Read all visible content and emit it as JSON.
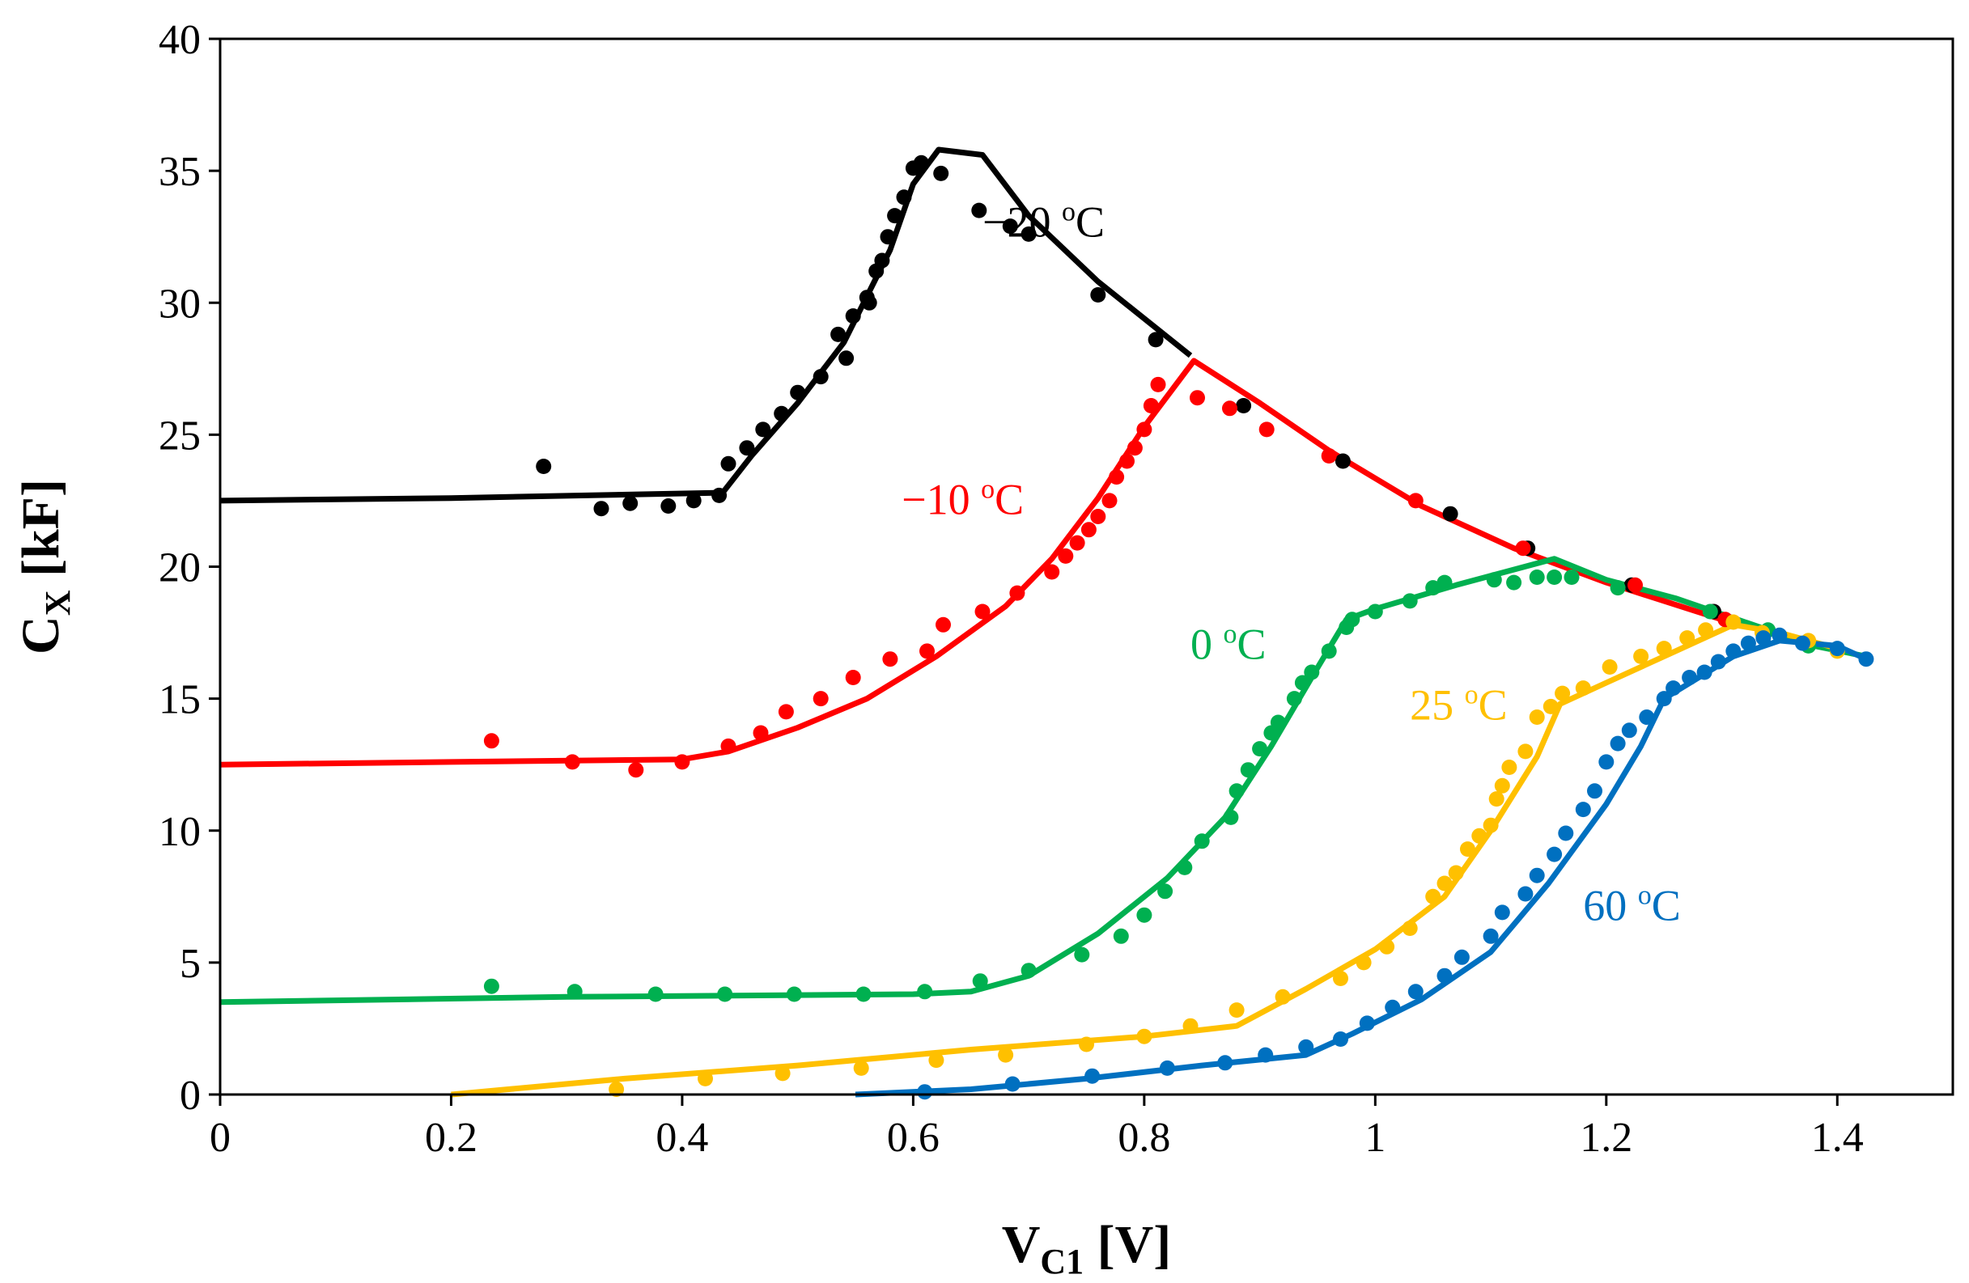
{
  "chart_data": {
    "type": "scatter",
    "title": "",
    "xlabel": {
      "main": "V",
      "sub": "C1",
      "unit": " [V]"
    },
    "ylabel": {
      "main": "C",
      "sub": "X",
      "unit": " [kF]"
    },
    "xlim": [
      0,
      1.5
    ],
    "ylim": [
      0,
      40
    ],
    "xticks": [
      0,
      0.2,
      0.4,
      0.6,
      0.8,
      1,
      1.2,
      1.4
    ],
    "xtick_labels": [
      "0",
      "0.2",
      "0.4",
      "0.6",
      "0.8",
      "1",
      "1.2",
      "1.4"
    ],
    "yticks": [
      0,
      5,
      10,
      15,
      20,
      25,
      30,
      35,
      40
    ],
    "ytick_labels": [
      "0",
      "5",
      "10",
      "15",
      "20",
      "25",
      "30",
      "35",
      "40"
    ],
    "grid": false,
    "series": [
      {
        "name": "-20 °C",
        "label_text": "−20 ",
        "label_unit": "C",
        "label_sup": "o",
        "color": "#000000",
        "label_at": [
          0.66,
          32.5
        ],
        "line": [
          [
            0,
            22.5
          ],
          [
            0.2,
            22.6
          ],
          [
            0.435,
            22.8
          ],
          [
            0.46,
            24.2
          ],
          [
            0.5,
            26.2
          ],
          [
            0.54,
            28.5
          ],
          [
            0.58,
            32.0
          ],
          [
            0.6,
            34.5
          ],
          [
            0.622,
            35.8
          ],
          [
            0.66,
            35.6
          ],
          [
            0.7,
            33.3
          ],
          [
            0.76,
            30.8
          ],
          [
            0.84,
            28.0
          ]
        ],
        "points": [
          [
            0.28,
            23.8
          ],
          [
            0.33,
            22.2
          ],
          [
            0.355,
            22.4
          ],
          [
            0.388,
            22.3
          ],
          [
            0.41,
            22.5
          ],
          [
            0.432,
            22.7
          ],
          [
            0.44,
            23.9
          ],
          [
            0.456,
            24.5
          ],
          [
            0.47,
            25.2
          ],
          [
            0.486,
            25.8
          ],
          [
            0.5,
            26.6
          ],
          [
            0.52,
            27.2
          ],
          [
            0.535,
            28.8
          ],
          [
            0.542,
            27.9
          ],
          [
            0.548,
            29.5
          ],
          [
            0.56,
            30.2
          ],
          [
            0.562,
            30.0
          ],
          [
            0.568,
            31.2
          ],
          [
            0.573,
            31.6
          ],
          [
            0.578,
            32.5
          ],
          [
            0.584,
            33.3
          ],
          [
            0.592,
            34.0
          ],
          [
            0.6,
            35.1
          ],
          [
            0.607,
            35.3
          ],
          [
            0.624,
            34.9
          ],
          [
            0.657,
            33.5
          ],
          [
            0.684,
            32.9
          ],
          [
            0.7,
            32.6
          ],
          [
            0.76,
            30.3
          ],
          [
            0.81,
            28.6
          ],
          [
            0.886,
            26.1
          ],
          [
            0.972,
            24.0
          ],
          [
            1.065,
            22.0
          ],
          [
            1.132,
            20.7
          ],
          [
            1.222,
            19.3
          ],
          [
            1.293,
            18.3
          ]
        ]
      },
      {
        "name": "-10 °C",
        "label_text": "−10 ",
        "label_unit": "C",
        "label_sup": "o",
        "color": "#ff0000",
        "label_at": [
          0.59,
          22.0
        ],
        "line": [
          [
            0,
            12.5
          ],
          [
            0.2,
            12.6
          ],
          [
            0.4,
            12.7
          ],
          [
            0.44,
            13.0
          ],
          [
            0.5,
            13.9
          ],
          [
            0.56,
            15.0
          ],
          [
            0.62,
            16.6
          ],
          [
            0.68,
            18.5
          ],
          [
            0.72,
            20.3
          ],
          [
            0.76,
            22.6
          ],
          [
            0.8,
            25.3
          ],
          [
            0.843,
            27.8
          ],
          [
            0.9,
            26.2
          ],
          [
            0.96,
            24.4
          ],
          [
            1.04,
            22.3
          ],
          [
            1.12,
            20.7
          ],
          [
            1.2,
            19.4
          ],
          [
            1.3,
            18.0
          ]
        ],
        "points": [
          [
            0.235,
            13.4
          ],
          [
            0.305,
            12.6
          ],
          [
            0.36,
            12.3
          ],
          [
            0.4,
            12.6
          ],
          [
            0.44,
            13.2
          ],
          [
            0.468,
            13.7
          ],
          [
            0.49,
            14.5
          ],
          [
            0.52,
            15.0
          ],
          [
            0.548,
            15.8
          ],
          [
            0.58,
            16.5
          ],
          [
            0.612,
            16.8
          ],
          [
            0.626,
            17.8
          ],
          [
            0.66,
            18.3
          ],
          [
            0.69,
            19.0
          ],
          [
            0.72,
            19.8
          ],
          [
            0.732,
            20.4
          ],
          [
            0.742,
            20.9
          ],
          [
            0.752,
            21.4
          ],
          [
            0.76,
            21.9
          ],
          [
            0.77,
            22.5
          ],
          [
            0.776,
            23.4
          ],
          [
            0.785,
            24.0
          ],
          [
            0.792,
            24.5
          ],
          [
            0.8,
            25.2
          ],
          [
            0.806,
            26.1
          ],
          [
            0.812,
            26.9
          ],
          [
            0.846,
            26.4
          ],
          [
            0.874,
            26.0
          ],
          [
            0.906,
            25.2
          ],
          [
            0.96,
            24.2
          ],
          [
            1.035,
            22.5
          ],
          [
            1.128,
            20.7
          ],
          [
            1.225,
            19.3
          ],
          [
            1.303,
            18.0
          ]
        ]
      },
      {
        "name": "0 °C",
        "label_text": "0 ",
        "label_unit": "C",
        "label_sup": "o",
        "color": "#00b050",
        "label_at": [
          0.84,
          16.5
        ],
        "line": [
          [
            0,
            3.5
          ],
          [
            0.3,
            3.7
          ],
          [
            0.6,
            3.8
          ],
          [
            0.65,
            3.9
          ],
          [
            0.7,
            4.5
          ],
          [
            0.76,
            6.1
          ],
          [
            0.82,
            8.2
          ],
          [
            0.87,
            10.5
          ],
          [
            0.91,
            13.2
          ],
          [
            0.945,
            15.8
          ],
          [
            0.975,
            18.0
          ],
          [
            1.0,
            18.4
          ],
          [
            1.07,
            19.3
          ],
          [
            1.155,
            20.3
          ],
          [
            1.2,
            19.5
          ],
          [
            1.26,
            18.8
          ],
          [
            1.32,
            17.9
          ],
          [
            1.38,
            17.0
          ],
          [
            1.425,
            16.6
          ]
        ],
        "points": [
          [
            0.235,
            4.1
          ],
          [
            0.307,
            3.9
          ],
          [
            0.377,
            3.8
          ],
          [
            0.437,
            3.8
          ],
          [
            0.497,
            3.8
          ],
          [
            0.557,
            3.8
          ],
          [
            0.61,
            3.9
          ],
          [
            0.658,
            4.3
          ],
          [
            0.7,
            4.7
          ],
          [
            0.746,
            5.3
          ],
          [
            0.78,
            6.0
          ],
          [
            0.8,
            6.8
          ],
          [
            0.818,
            7.7
          ],
          [
            0.835,
            8.6
          ],
          [
            0.85,
            9.6
          ],
          [
            0.875,
            10.5
          ],
          [
            0.88,
            11.5
          ],
          [
            0.89,
            12.3
          ],
          [
            0.9,
            13.1
          ],
          [
            0.91,
            13.7
          ],
          [
            0.916,
            14.1
          ],
          [
            0.93,
            15.0
          ],
          [
            0.937,
            15.6
          ],
          [
            0.945,
            16.0
          ],
          [
            0.96,
            16.8
          ],
          [
            0.975,
            17.7
          ],
          [
            0.98,
            18.0
          ],
          [
            1.0,
            18.3
          ],
          [
            1.03,
            18.7
          ],
          [
            1.05,
            19.2
          ],
          [
            1.06,
            19.4
          ],
          [
            1.103,
            19.5
          ],
          [
            1.12,
            19.4
          ],
          [
            1.14,
            19.6
          ],
          [
            1.155,
            19.6
          ],
          [
            1.17,
            19.6
          ],
          [
            1.21,
            19.2
          ],
          [
            1.29,
            18.3
          ],
          [
            1.34,
            17.6
          ],
          [
            1.375,
            17.0
          ]
        ]
      },
      {
        "name": "25 °C",
        "label_text": "25 ",
        "label_unit": "C",
        "label_sup": "o",
        "color": "#ffc000",
        "label_at": [
          1.03,
          14.2
        ],
        "line": [
          [
            0.2,
            0
          ],
          [
            0.35,
            0.6
          ],
          [
            0.5,
            1.1
          ],
          [
            0.65,
            1.7
          ],
          [
            0.8,
            2.2
          ],
          [
            0.88,
            2.6
          ],
          [
            0.94,
            4.0
          ],
          [
            1.0,
            5.5
          ],
          [
            1.06,
            7.5
          ],
          [
            1.1,
            10.0
          ],
          [
            1.14,
            12.8
          ],
          [
            1.16,
            14.8
          ],
          [
            1.2,
            15.6
          ],
          [
            1.26,
            16.8
          ],
          [
            1.31,
            17.8
          ],
          [
            1.35,
            17.5
          ],
          [
            1.4,
            16.9
          ]
        ],
        "points": [
          [
            0.343,
            0.2
          ],
          [
            0.42,
            0.6
          ],
          [
            0.487,
            0.8
          ],
          [
            0.555,
            1.0
          ],
          [
            0.62,
            1.3
          ],
          [
            0.68,
            1.5
          ],
          [
            0.75,
            1.9
          ],
          [
            0.8,
            2.2
          ],
          [
            0.84,
            2.6
          ],
          [
            0.88,
            3.2
          ],
          [
            0.92,
            3.7
          ],
          [
            0.97,
            4.4
          ],
          [
            0.99,
            5.0
          ],
          [
            1.01,
            5.6
          ],
          [
            1.03,
            6.3
          ],
          [
            1.05,
            7.5
          ],
          [
            1.06,
            8.0
          ],
          [
            1.07,
            8.4
          ],
          [
            1.08,
            9.3
          ],
          [
            1.09,
            9.8
          ],
          [
            1.1,
            10.2
          ],
          [
            1.105,
            11.2
          ],
          [
            1.11,
            11.7
          ],
          [
            1.116,
            12.4
          ],
          [
            1.13,
            13.0
          ],
          [
            1.14,
            14.3
          ],
          [
            1.152,
            14.7
          ],
          [
            1.162,
            15.2
          ],
          [
            1.18,
            15.4
          ],
          [
            1.203,
            16.2
          ],
          [
            1.23,
            16.6
          ],
          [
            1.25,
            16.9
          ],
          [
            1.27,
            17.3
          ],
          [
            1.286,
            17.6
          ],
          [
            1.31,
            17.9
          ],
          [
            1.335,
            17.5
          ],
          [
            1.375,
            17.2
          ],
          [
            1.4,
            16.8
          ]
        ]
      },
      {
        "name": "60 °C",
        "label_text": "60 ",
        "label_unit": "C",
        "label_sup": "o",
        "color": "#0070c0",
        "label_at": [
          1.18,
          6.6
        ],
        "line": [
          [
            0.55,
            0
          ],
          [
            0.65,
            0.2
          ],
          [
            0.75,
            0.6
          ],
          [
            0.85,
            1.1
          ],
          [
            0.94,
            1.5
          ],
          [
            0.98,
            2.3
          ],
          [
            1.04,
            3.6
          ],
          [
            1.1,
            5.4
          ],
          [
            1.15,
            8.0
          ],
          [
            1.2,
            11.0
          ],
          [
            1.23,
            13.2
          ],
          [
            1.25,
            15.0
          ],
          [
            1.28,
            15.8
          ],
          [
            1.31,
            16.6
          ],
          [
            1.35,
            17.2
          ],
          [
            1.4,
            17.0
          ],
          [
            1.425,
            16.5
          ]
        ],
        "points": [
          [
            0.61,
            0.1
          ],
          [
            0.686,
            0.4
          ],
          [
            0.755,
            0.7
          ],
          [
            0.82,
            1.0
          ],
          [
            0.87,
            1.2
          ],
          [
            0.905,
            1.5
          ],
          [
            0.94,
            1.8
          ],
          [
            0.97,
            2.1
          ],
          [
            0.993,
            2.7
          ],
          [
            1.015,
            3.3
          ],
          [
            1.035,
            3.9
          ],
          [
            1.06,
            4.5
          ],
          [
            1.075,
            5.2
          ],
          [
            1.1,
            6.0
          ],
          [
            1.11,
            6.9
          ],
          [
            1.13,
            7.6
          ],
          [
            1.14,
            8.3
          ],
          [
            1.155,
            9.1
          ],
          [
            1.165,
            9.9
          ],
          [
            1.18,
            10.8
          ],
          [
            1.19,
            11.5
          ],
          [
            1.2,
            12.6
          ],
          [
            1.21,
            13.3
          ],
          [
            1.22,
            13.8
          ],
          [
            1.235,
            14.3
          ],
          [
            1.25,
            15.0
          ],
          [
            1.258,
            15.4
          ],
          [
            1.272,
            15.8
          ],
          [
            1.285,
            16.0
          ],
          [
            1.297,
            16.4
          ],
          [
            1.31,
            16.8
          ],
          [
            1.323,
            17.1
          ],
          [
            1.336,
            17.3
          ],
          [
            1.35,
            17.4
          ],
          [
            1.37,
            17.1
          ],
          [
            1.4,
            16.9
          ],
          [
            1.425,
            16.5
          ]
        ]
      }
    ]
  }
}
